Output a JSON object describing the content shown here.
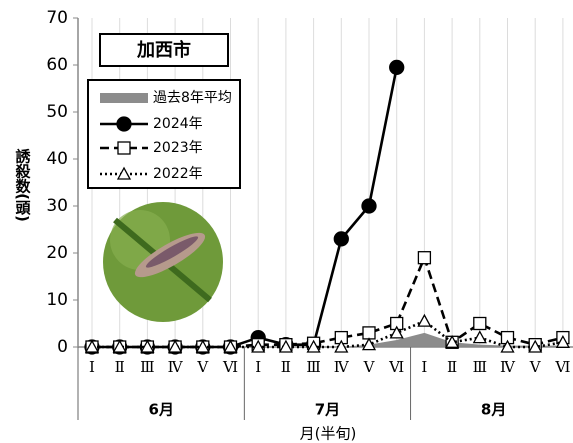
{
  "chart_data": {
    "type": "line",
    "label": "加西市",
    "y_label": "誘殺数(頭)",
    "x_label": "月(半旬)",
    "categories": [
      "Ⅰ",
      "Ⅱ",
      "Ⅲ",
      "Ⅳ",
      "Ⅴ",
      "Ⅵ",
      "Ⅰ",
      "Ⅱ",
      "Ⅲ",
      "Ⅳ",
      "Ⅴ",
      "Ⅵ",
      "Ⅰ",
      "Ⅱ",
      "Ⅲ",
      "Ⅳ",
      "Ⅴ",
      "Ⅵ"
    ],
    "groups": [
      "6月",
      "7月",
      "8月"
    ],
    "ylim": [
      0,
      70
    ],
    "yticks": [
      0,
      10,
      20,
      30,
      40,
      50,
      60,
      70
    ],
    "series": [
      {
        "name": "過去8年平均",
        "color": "#8c8c8c",
        "area": true,
        "values": [
          0,
          0,
          0,
          0,
          0,
          0,
          0,
          0,
          0,
          0,
          0.5,
          1.5,
          3,
          1,
          0.5,
          0.3,
          0.3,
          0.3
        ]
      },
      {
        "name": "2024年",
        "color": "#000000",
        "marker": "circle",
        "dash": "none",
        "values": [
          0,
          0,
          0,
          0,
          0,
          0,
          2,
          0.5,
          0.5,
          23,
          30,
          59.5,
          null,
          null,
          null,
          null,
          null,
          null
        ]
      },
      {
        "name": "2023年",
        "color": "#000000",
        "marker": "square",
        "dash": "9,5",
        "values": [
          0,
          0,
          0,
          0,
          0,
          0,
          0.5,
          0.5,
          0.8,
          2,
          3,
          5,
          19,
          1,
          5,
          2,
          0.5,
          2
        ]
      },
      {
        "name": "2022年",
        "color": "#000000",
        "marker": "triangle",
        "dash": "2,3",
        "values": [
          0,
          0,
          0,
          0,
          0,
          0,
          0,
          0,
          0,
          0,
          0.5,
          3,
          5.5,
          1,
          2,
          0,
          0,
          1
        ]
      }
    ]
  }
}
